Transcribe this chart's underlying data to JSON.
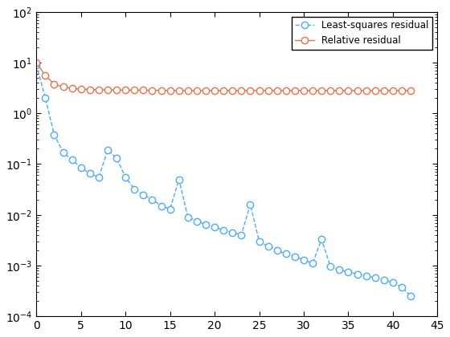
{
  "title": "",
  "xlabel": "",
  "ylabel": "",
  "xlim": [
    0,
    45
  ],
  "ylim_log": [
    -4,
    2
  ],
  "x_ticks": [
    0,
    5,
    10,
    15,
    20,
    25,
    30,
    35,
    40,
    45
  ],
  "ls_residual_x": [
    0,
    1,
    2,
    3,
    4,
    5,
    6,
    7,
    8,
    9,
    10,
    11,
    12,
    13,
    14,
    15,
    16,
    17,
    18,
    19,
    20,
    21,
    22,
    23,
    24,
    25,
    26,
    27,
    28,
    29,
    30,
    31,
    32,
    33,
    34,
    35,
    36,
    37,
    38,
    39,
    40,
    41,
    42
  ],
  "ls_residual_y": [
    9.0,
    2.0,
    0.38,
    0.17,
    0.12,
    0.085,
    0.065,
    0.055,
    0.19,
    0.13,
    0.055,
    0.032,
    0.025,
    0.02,
    0.015,
    0.013,
    0.05,
    0.009,
    0.0075,
    0.0065,
    0.0057,
    0.005,
    0.0045,
    0.004,
    0.016,
    0.003,
    0.0024,
    0.002,
    0.0017,
    0.0015,
    0.0013,
    0.0011,
    0.0033,
    0.00095,
    0.00082,
    0.00075,
    0.00068,
    0.00062,
    0.00058,
    0.00052,
    0.00046,
    0.00038,
    0.00025
  ],
  "rel_residual_x": [
    0,
    1,
    2,
    3,
    4,
    5,
    6,
    7,
    8,
    9,
    10,
    11,
    12,
    13,
    14,
    15,
    16,
    17,
    18,
    19,
    20,
    21,
    22,
    23,
    24,
    25,
    26,
    27,
    28,
    29,
    30,
    31,
    32,
    33,
    34,
    35,
    36,
    37,
    38,
    39,
    40,
    41,
    42
  ],
  "rel_residual_y": [
    10.0,
    5.5,
    3.8,
    3.3,
    3.1,
    3.0,
    2.95,
    2.92,
    2.9,
    2.88,
    2.87,
    2.86,
    2.85,
    2.84,
    2.84,
    2.83,
    2.83,
    2.82,
    2.82,
    2.82,
    2.82,
    2.82,
    2.82,
    2.82,
    2.82,
    2.82,
    2.82,
    2.82,
    2.82,
    2.82,
    2.82,
    2.82,
    2.82,
    2.82,
    2.82,
    2.82,
    2.82,
    2.82,
    2.82,
    2.82,
    2.82,
    2.82,
    2.82
  ],
  "ls_color": "#4DAAFF",
  "rel_color": "#E8734A",
  "ls_label": "Least-squares residual",
  "rel_label": "Relative residual",
  "background_color": "#ffffff"
}
